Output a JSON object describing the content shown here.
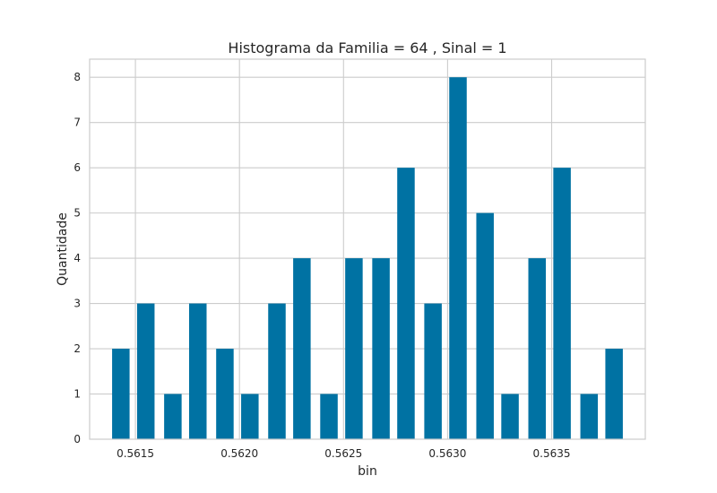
{
  "chart_data": {
    "type": "bar",
    "title": "Histograma da Familia = 64 , Sinal = 1",
    "xlabel": "bin",
    "ylabel": "Quantidade",
    "x": [
      0.56143,
      0.56155,
      0.56168,
      0.5618,
      0.56193,
      0.56205,
      0.56218,
      0.5623,
      0.56243,
      0.56255,
      0.56268,
      0.5628,
      0.56293,
      0.56305,
      0.56318,
      0.5633,
      0.56343,
      0.56355,
      0.56368,
      0.5638
    ],
    "values": [
      2,
      3,
      1,
      3,
      2,
      1,
      3,
      4,
      1,
      4,
      4,
      6,
      3,
      8,
      5,
      1,
      4,
      6,
      1,
      2
    ],
    "xticks": [
      0.5615,
      0.562,
      0.5625,
      0.563,
      0.5635
    ],
    "xtick_labels": [
      "0.5615",
      "0.5620",
      "0.5625",
      "0.5630",
      "0.5635"
    ],
    "yticks": [
      0,
      1,
      2,
      3,
      4,
      5,
      6,
      7,
      8
    ],
    "ytick_labels": [
      "0",
      "1",
      "2",
      "3",
      "4",
      "5",
      "6",
      "7",
      "8"
    ],
    "xlim": [
      0.56128,
      0.56395
    ],
    "ylim": [
      0,
      8.4
    ],
    "grid": true,
    "bar_color": "#0072a3",
    "grid_color": "#cccccc"
  }
}
